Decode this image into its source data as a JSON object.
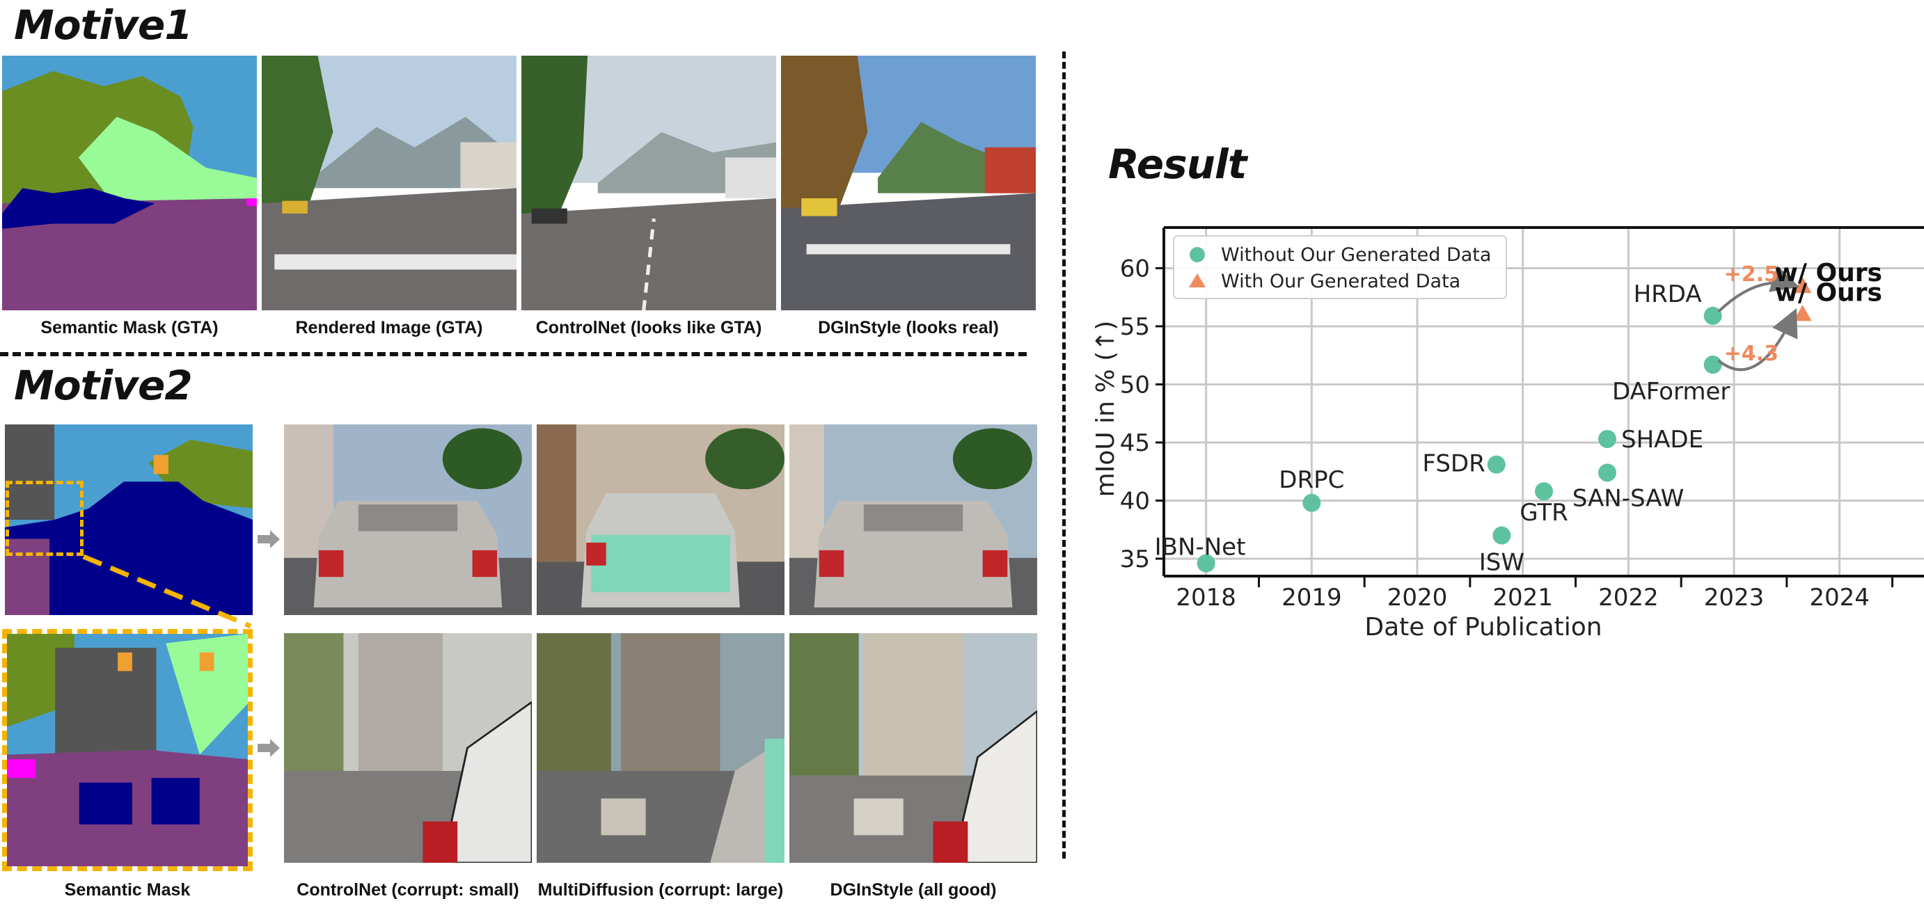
{
  "motive1": {
    "heading": "Motive1",
    "captions": [
      "Semantic Mask (GTA)",
      "Rendered Image (GTA)",
      "ControlNet (looks like GTA)",
      "DGInStyle (looks real)"
    ]
  },
  "motive2": {
    "heading": "Motive2",
    "mask_caption": "Semantic Mask",
    "captions": [
      "ControlNet (corrupt: small)",
      "MultiDiffusion (corrupt: large)",
      "DGInStyle (all good)"
    ]
  },
  "result": {
    "heading": "Result"
  },
  "colors": {
    "without": "#5ec29f",
    "with": "#f08a5d",
    "gain_text": "#f08a5d",
    "highlight": "#f5b400"
  },
  "chart_data": {
    "type": "scatter",
    "xlabel": "Date of Publication",
    "ylabel": "mIoU in % (↑)",
    "xlim": [
      2017.6,
      2024.8
    ],
    "ylim": [
      33.5,
      63.5
    ],
    "xticks": [
      "2018",
      "2019",
      "2020",
      "2021",
      "2022",
      "2023",
      "2024"
    ],
    "yticks": [
      35,
      40,
      45,
      50,
      55,
      60
    ],
    "grid": true,
    "legend_position": "top-left",
    "legend": [
      "Without Our Generated Data",
      "With Our Generated Data"
    ],
    "series": [
      {
        "name": "Without Our Generated Data",
        "points": [
          {
            "label": "IBN-Net",
            "x": 2018.0,
            "y": 34.6
          },
          {
            "label": "DRPC",
            "x": 2019.0,
            "y": 39.8
          },
          {
            "label": "FSDR",
            "x": 2020.75,
            "y": 43.1
          },
          {
            "label": "ISW",
            "x": 2020.8,
            "y": 37.0
          },
          {
            "label": "GTR",
            "x": 2021.2,
            "y": 40.8
          },
          {
            "label": "SHADE",
            "x": 2021.8,
            "y": 45.3
          },
          {
            "label": "SAN-SAW",
            "x": 2021.8,
            "y": 42.4
          },
          {
            "label": "HRDA",
            "x": 2022.8,
            "y": 55.9
          },
          {
            "label": "DAFormer",
            "x": 2022.8,
            "y": 51.7
          }
        ]
      },
      {
        "name": "With Our Generated Data",
        "points": [
          {
            "label": "w/ Ours",
            "x": 2023.65,
            "y": 58.4,
            "base": "HRDA",
            "gain": "+2.5"
          },
          {
            "label": "w/ Ours",
            "x": 2023.65,
            "y": 56.0,
            "base": "DAFormer",
            "gain": "+4.3"
          }
        ]
      }
    ]
  }
}
